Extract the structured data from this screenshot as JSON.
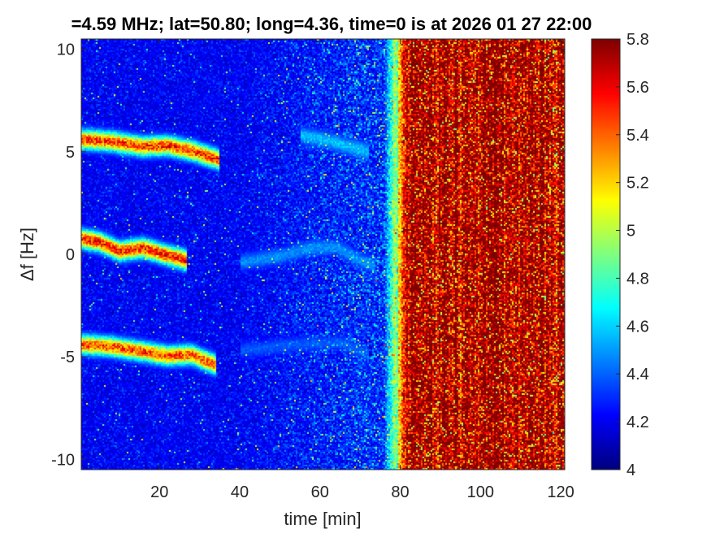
{
  "chart_data": {
    "type": "heatmap",
    "title": "=4.59 MHz;  lat=50.80; long=4.36, time=0 is at 2026 01 27 22:00",
    "xlabel": "time [min]",
    "ylabel": "Δf [Hz]",
    "xlim": [
      0.5,
      121
    ],
    "ylim": [
      -10.5,
      10.5
    ],
    "xticks": [
      20,
      40,
      60,
      80,
      100,
      120
    ],
    "yticks": [
      -10,
      -5,
      0,
      5,
      10
    ],
    "colorbar": {
      "colormap": "jet",
      "clim": [
        4,
        5.8
      ],
      "ticks": [
        4,
        4.2,
        4.4,
        4.6,
        4.8,
        5,
        5.2,
        5.4,
        5.6,
        5.8
      ]
    },
    "background_level": 4.15,
    "noise_wall": {
      "onset_min": 76,
      "full_min": 82,
      "level": 5.75
    },
    "traces": [
      {
        "points": [
          [
            0.5,
            5.6
          ],
          [
            8,
            5.5
          ],
          [
            16,
            5.25
          ],
          [
            22,
            5.3
          ],
          [
            28,
            5.05
          ],
          [
            35,
            4.6
          ]
        ],
        "level": 5.6
      },
      {
        "points": [
          [
            0.5,
            0.75
          ],
          [
            5,
            0.6
          ],
          [
            10,
            0.15
          ],
          [
            16,
            0.3
          ],
          [
            22,
            -0.05
          ],
          [
            27,
            -0.3
          ]
        ],
        "level": 5.65
      },
      {
        "points": [
          [
            0.5,
            -4.4
          ],
          [
            8,
            -4.5
          ],
          [
            16,
            -4.75
          ],
          [
            22,
            -4.95
          ],
          [
            28,
            -4.9
          ],
          [
            34,
            -5.4
          ]
        ],
        "level": 5.55
      },
      {
        "points": [
          [
            40,
            -0.4
          ],
          [
            50,
            -0.1
          ],
          [
            58,
            0.3
          ],
          [
            64,
            0.35
          ],
          [
            70,
            -0.3
          ],
          [
            74,
            -0.6
          ]
        ],
        "level": 4.5
      },
      {
        "points": [
          [
            55,
            5.8
          ],
          [
            62,
            5.55
          ],
          [
            68,
            5.2
          ],
          [
            72,
            5.0
          ]
        ],
        "level": 4.6
      },
      {
        "points": [
          [
            40,
            -4.7
          ],
          [
            55,
            -4.4
          ],
          [
            65,
            -4.3
          ],
          [
            72,
            -4.9
          ]
        ],
        "level": 4.4
      }
    ]
  }
}
